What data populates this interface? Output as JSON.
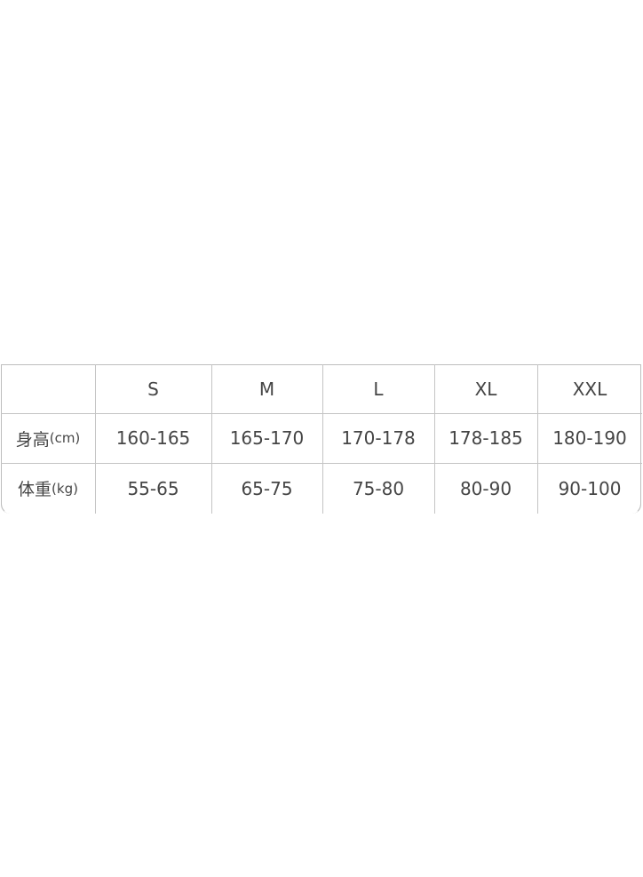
{
  "table": {
    "headers": [
      "",
      "S",
      "M",
      "L",
      "XL",
      "XXL"
    ],
    "rows": [
      {
        "label": "身高",
        "unit": "(cm)",
        "values": [
          "160-165",
          "165-170",
          "170-178",
          "178-185",
          "180-190"
        ]
      },
      {
        "label": "体重",
        "unit": "(kg)",
        "values": [
          "55-65",
          "65-75",
          "75-80",
          "80-90",
          "90-100"
        ]
      }
    ]
  }
}
